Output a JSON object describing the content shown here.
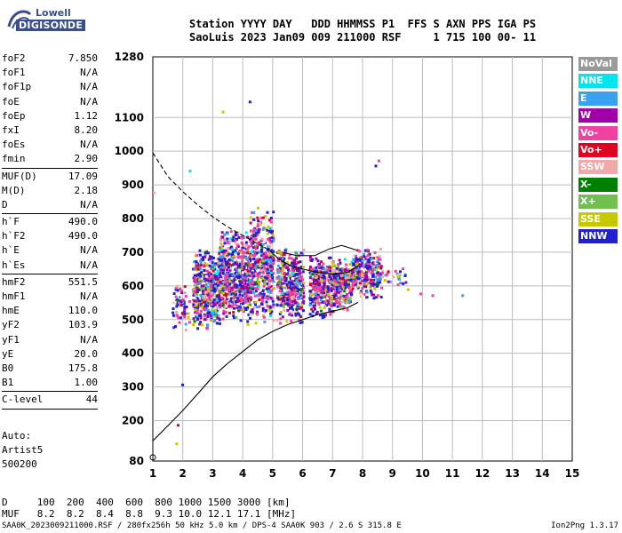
{
  "logo": {
    "line1": "Lowell",
    "line2": "DIGISONDE"
  },
  "header": {
    "line1": "Station YYYY DAY   DDD HHMMSS P1  FFS S AXN PPS IGA PS",
    "line2": "SaoLuis 2023 Jan09 009 211000 RSF     1 715 100 00- 11"
  },
  "params": {
    "group1": [
      {
        "k": "foF2",
        "v": "7.850"
      },
      {
        "k": "foF1",
        "v": "N/A"
      },
      {
        "k": "foF1p",
        "v": "N/A"
      },
      {
        "k": "foE",
        "v": "N/A"
      },
      {
        "k": "foEp",
        "v": "1.12"
      },
      {
        "k": "fxI",
        "v": "8.20"
      },
      {
        "k": "foEs",
        "v": "N/A"
      },
      {
        "k": "fmin",
        "v": "2.90"
      }
    ],
    "group2": [
      {
        "k": "MUF(D)",
        "v": "17.09"
      },
      {
        "k": "M(D)",
        "v": "2.18"
      },
      {
        "k": "D",
        "v": "N/A"
      }
    ],
    "group3": [
      {
        "k": "h`F",
        "v": "490.0"
      },
      {
        "k": "h`F2",
        "v": "490.0"
      },
      {
        "k": "h`E",
        "v": "N/A"
      },
      {
        "k": "h`Es",
        "v": "N/A"
      }
    ],
    "group4": [
      {
        "k": "hmF2",
        "v": "551.5"
      },
      {
        "k": "hmF1",
        "v": "N/A"
      },
      {
        "k": "hmE",
        "v": "110.0"
      },
      {
        "k": "yF2",
        "v": "103.9"
      },
      {
        "k": "yF1",
        "v": "N/A"
      },
      {
        "k": "yE",
        "v": "20.0"
      },
      {
        "k": "B0",
        "v": "175.8"
      },
      {
        "k": "B1",
        "v": "1.00"
      }
    ],
    "group5": [
      {
        "k": "C-level",
        "v": "44"
      }
    ]
  },
  "auto": {
    "line1": "Auto:",
    "line2": "Artist5",
    "line3": "500200"
  },
  "legend": [
    {
      "label": "NoVal",
      "color": "#9a9a9a"
    },
    {
      "label": "NNE",
      "color": "#00e5ee"
    },
    {
      "label": "E",
      "color": "#3aa0f0"
    },
    {
      "label": "W",
      "color": "#a000a8"
    },
    {
      "label": "Vo-",
      "color": "#f040a0"
    },
    {
      "label": "Vo+",
      "color": "#e00020"
    },
    {
      "label": "SSW",
      "color": "#f0a8a8"
    },
    {
      "label": "X-",
      "color": "#008000"
    },
    {
      "label": "X+",
      "color": "#70c050"
    },
    {
      "label": "SSE",
      "color": "#c8c800"
    },
    {
      "label": "NNW",
      "color": "#2020d0"
    }
  ],
  "muf_table": {
    "line1": "D     100  200  400  600  800 1000 1500 3000 [km]",
    "line2": "MUF   8.2  8.2  8.4  8.8  9.3 10.0 12.1 17.1 [MHz]"
  },
  "footer": {
    "left": "SAA0K_2023009211000.RSF / 280fx256h 50 kHz 5.0 km / DPS-4 SAA0K 903 / 2.6 S 315.8 E",
    "right": "Ion2Png 1.3.17"
  },
  "chart_data": {
    "type": "scatter",
    "title": "",
    "xlabel": "",
    "ylabel": "",
    "xlim": [
      1,
      15
    ],
    "ylim": [
      80,
      1280
    ],
    "x_ticks": [
      1,
      2,
      3,
      4,
      5,
      6,
      7,
      8,
      9,
      10,
      11,
      12,
      13,
      14,
      15
    ],
    "y_ticks": [
      80,
      200,
      300,
      400,
      500,
      600,
      700,
      800,
      900,
      1000,
      1100,
      1280
    ],
    "grid": true,
    "ionogram_clusters": [
      {
        "x": [
          1.6,
          2.2
        ],
        "y": [
          460,
          620
        ],
        "n": 70
      },
      {
        "x": [
          2.3,
          3.2
        ],
        "y": [
          470,
          720
        ],
        "n": 500
      },
      {
        "x": [
          3.2,
          4.2
        ],
        "y": [
          480,
          780
        ],
        "n": 650
      },
      {
        "x": [
          4.2,
          5.0
        ],
        "y": [
          480,
          840
        ],
        "n": 450
      },
      {
        "x": [
          5.1,
          6.0
        ],
        "y": [
          490,
          720
        ],
        "n": 420
      },
      {
        "x": [
          6.2,
          7.0
        ],
        "y": [
          500,
          700
        ],
        "n": 360
      },
      {
        "x": [
          7.0,
          7.6
        ],
        "y": [
          520,
          690
        ],
        "n": 250
      },
      {
        "x": [
          7.6,
          8.6
        ],
        "y": [
          560,
          720
        ],
        "n": 260
      },
      {
        "x": [
          8.6,
          9.5
        ],
        "y": [
          590,
          670
        ],
        "n": 30
      }
    ],
    "sparse_points": [
      {
        "x": 3.3,
        "y": 1120,
        "c": "#c8c800"
      },
      {
        "x": 4.2,
        "y": 1150,
        "c": "#2020d0"
      },
      {
        "x": 2.2,
        "y": 945,
        "c": "#00e5ee"
      },
      {
        "x": 8.5,
        "y": 975,
        "c": "#f040a0"
      },
      {
        "x": 8.4,
        "y": 960,
        "c": "#2020d0"
      },
      {
        "x": 1.0,
        "y": 880,
        "c": "#f0a8a8"
      },
      {
        "x": 1.95,
        "y": 310,
        "c": "#2020d0"
      },
      {
        "x": 1.8,
        "y": 190,
        "c": "#e00020"
      },
      {
        "x": 1.75,
        "y": 135,
        "c": "#c8c800"
      },
      {
        "x": 10.3,
        "y": 575,
        "c": "#f040a0"
      },
      {
        "x": 11.3,
        "y": 575,
        "c": "#3aa0f0"
      },
      {
        "x": 9.9,
        "y": 580,
        "c": "#f040a0"
      }
    ],
    "profile_curve": [
      [
        1.0,
        140
      ],
      [
        1.5,
        185
      ],
      [
        2.0,
        230
      ],
      [
        2.5,
        280
      ],
      [
        3.0,
        330
      ],
      [
        3.5,
        370
      ],
      [
        4.0,
        405
      ],
      [
        4.5,
        440
      ],
      [
        5.0,
        465
      ],
      [
        5.5,
        485
      ],
      [
        6.0,
        500
      ],
      [
        6.5,
        515
      ],
      [
        7.0,
        525
      ],
      [
        7.5,
        535
      ],
      [
        7.85,
        551
      ]
    ],
    "trace_dashed": [
      [
        1.0,
        995
      ],
      [
        1.5,
        925
      ],
      [
        2.0,
        880
      ],
      [
        2.5,
        840
      ],
      [
        3.0,
        805
      ],
      [
        3.5,
        775
      ],
      [
        4.0,
        750
      ],
      [
        4.5,
        725
      ],
      [
        4.9,
        705
      ]
    ],
    "trace_solid": [
      [
        4.9,
        705
      ],
      [
        5.2,
        680
      ],
      [
        5.6,
        660
      ],
      [
        6.0,
        650
      ],
      [
        6.5,
        640
      ],
      [
        7.0,
        635
      ],
      [
        7.5,
        640
      ],
      [
        7.85,
        660
      ]
    ],
    "trace_upper": [
      [
        5.3,
        700
      ],
      [
        5.8,
        690
      ],
      [
        6.4,
        690
      ],
      [
        6.9,
        710
      ],
      [
        7.3,
        720
      ],
      [
        7.85,
        705
      ]
    ],
    "trace_lower": [
      [
        1.0,
        110
      ],
      [
        1.0,
        95
      ]
    ]
  }
}
